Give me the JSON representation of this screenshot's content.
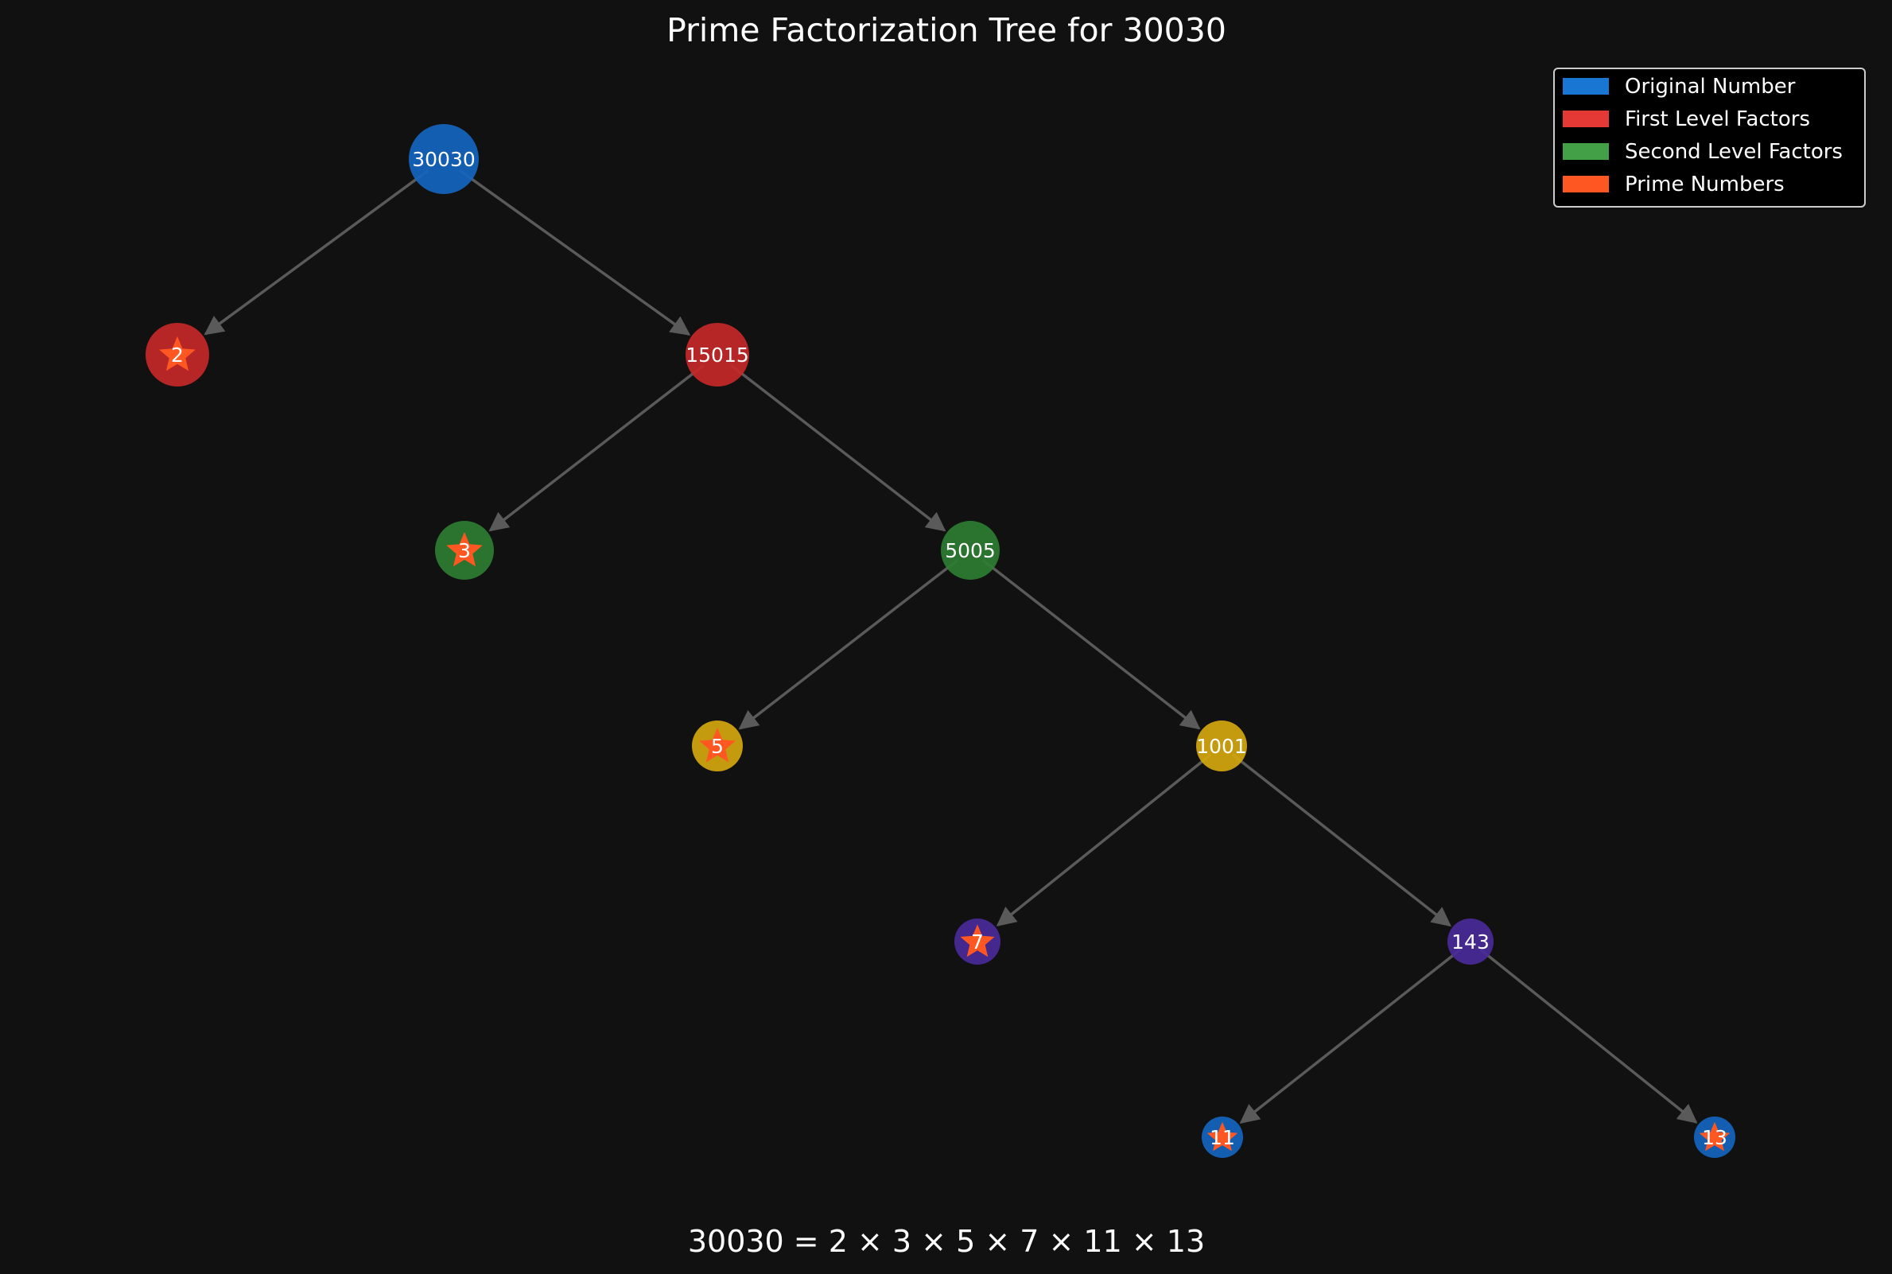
{
  "title": "Prime Factorization Tree for 30030",
  "equation": "30030 = 2 × 3 × 5 × 7 × 11 × 13",
  "colors": {
    "background": "#111111",
    "edge": "#5a5a5a",
    "prime_star": "#ff5722"
  },
  "legend": [
    {
      "label": "Original Number",
      "color": "#1976d2"
    },
    {
      "label": "First Level Factors",
      "color": "#e53935"
    },
    {
      "label": "Second Level Factors",
      "color": "#43a047"
    },
    {
      "label": "Prime Numbers",
      "color": "#ff5722"
    }
  ],
  "level_colors": [
    "#1565c0",
    "#c62828",
    "#2e7d32",
    "#d4a60f",
    "#4a2a98",
    "#1565c0"
  ],
  "nodes": [
    {
      "id": "30030",
      "label": "30030",
      "level": 0,
      "prime": false
    },
    {
      "id": "2",
      "label": "2",
      "level": 1,
      "prime": true
    },
    {
      "id": "15015",
      "label": "15015",
      "level": 1,
      "prime": false
    },
    {
      "id": "3",
      "label": "3",
      "level": 2,
      "prime": true
    },
    {
      "id": "5005",
      "label": "5005",
      "level": 2,
      "prime": false
    },
    {
      "id": "5",
      "label": "5",
      "level": 3,
      "prime": true
    },
    {
      "id": "1001",
      "label": "1001",
      "level": 3,
      "prime": false
    },
    {
      "id": "7",
      "label": "7",
      "level": 4,
      "prime": true
    },
    {
      "id": "143",
      "label": "143",
      "level": 4,
      "prime": false
    },
    {
      "id": "11",
      "label": "11",
      "level": 5,
      "prime": true
    },
    {
      "id": "13",
      "label": "13",
      "level": 5,
      "prime": true
    }
  ],
  "edges": [
    {
      "from": "30030",
      "to": "2"
    },
    {
      "from": "30030",
      "to": "15015"
    },
    {
      "from": "15015",
      "to": "3"
    },
    {
      "from": "15015",
      "to": "5005"
    },
    {
      "from": "5005",
      "to": "5"
    },
    {
      "from": "5005",
      "to": "1001"
    },
    {
      "from": "1001",
      "to": "7"
    },
    {
      "from": "1001",
      "to": "143"
    },
    {
      "from": "143",
      "to": "11"
    },
    {
      "from": "143",
      "to": "13"
    }
  ]
}
